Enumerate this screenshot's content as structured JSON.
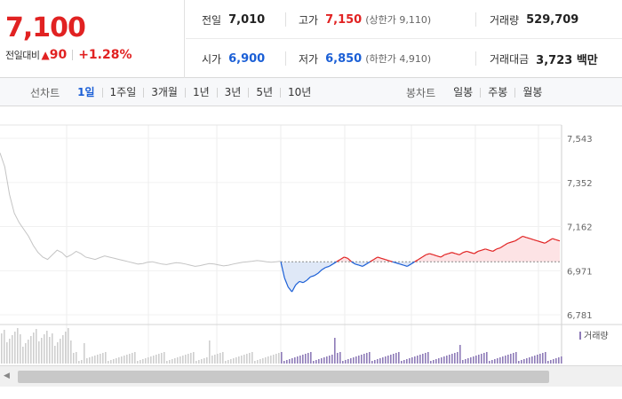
{
  "summary": {
    "price": "7,100",
    "change_label": "전일대비",
    "change_arrow": "▲",
    "change_value": "90",
    "change_pct": "+1.28%",
    "prev_close": {
      "label": "전일",
      "value": "7,010"
    },
    "open": {
      "label": "시가",
      "value": "6,900"
    },
    "high": {
      "label": "고가",
      "value": "7,150",
      "sub": "(상한가 9,110)"
    },
    "low": {
      "label": "저가",
      "value": "6,850",
      "sub": "(하한가 4,910)"
    },
    "volume": {
      "label": "거래량",
      "value": "529,709"
    },
    "amount": {
      "label": "거래대금",
      "value": "3,723 백만"
    }
  },
  "line_tabs": {
    "title": "선차트",
    "items": [
      "1일",
      "1주일",
      "3개월",
      "1년",
      "3년",
      "5년",
      "10년"
    ],
    "active": 0
  },
  "candle_tabs": {
    "title": "봉차트",
    "items": [
      "일봉",
      "주봉",
      "월봉"
    ]
  },
  "colors": {
    "up": "#e12222",
    "down": "#1b5fd6",
    "prev_day": "#c4c4c4",
    "volume": "#8e7bb8"
  },
  "chart_data": {
    "type": "line",
    "y_ticks": [
      "7,543",
      "7,352",
      "7,162",
      "6,971",
      "6,781"
    ],
    "ylim": [
      6781,
      7543
    ],
    "baseline": 7010,
    "volume_legend": "거래량",
    "prev_day_series": [
      7480,
      7420,
      7300,
      7220,
      7180,
      7150,
      7120,
      7080,
      7050,
      7030,
      7020,
      7040,
      7060,
      7050,
      7030,
      7040,
      7055,
      7045,
      7030,
      7025,
      7020,
      7028,
      7035,
      7030,
      7025,
      7020,
      7015,
      7010,
      7005,
      7000,
      7002,
      7008,
      7010,
      7005,
      7000,
      6998,
      7002,
      7006,
      7004,
      7000,
      6995,
      6990,
      6993,
      6998,
      7002,
      7000,
      6996,
      6992,
      6995,
      7000,
      7004,
      7008,
      7010,
      7012,
      7015,
      7013,
      7010,
      7008,
      7010,
      7012
    ],
    "today_series": [
      7010,
      6940,
      6900,
      6880,
      6910,
      6925,
      6920,
      6930,
      6945,
      6950,
      6960,
      6975,
      6985,
      6990,
      7000,
      7010,
      7020,
      7030,
      7025,
      7010,
      7000,
      6995,
      6990,
      7000,
      7010,
      7020,
      7030,
      7025,
      7020,
      7015,
      7010,
      7005,
      7000,
      6995,
      6990,
      7000,
      7010,
      7020,
      7030,
      7040,
      7045,
      7040,
      7035,
      7030,
      7040,
      7045,
      7050,
      7045,
      7040,
      7050,
      7055,
      7050,
      7045,
      7055,
      7060,
      7065,
      7060,
      7055,
      7065,
      7070,
      7080,
      7090,
      7095,
      7100,
      7110,
      7120,
      7115,
      7110,
      7105,
      7100,
      7095,
      7090,
      7100,
      7110,
      7105,
      7100
    ]
  }
}
